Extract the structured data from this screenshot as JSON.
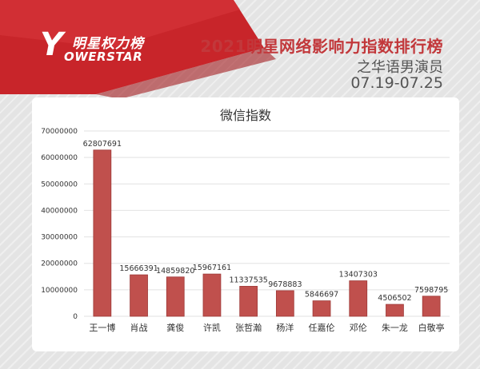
{
  "header": {
    "logo_letter": "Y",
    "logo_cn": "明星权力榜",
    "logo_en": "OWERSTAR",
    "title": "2021明星网络影响力指数排行榜",
    "subtitle": "之华语男演员",
    "date_range": "07.19-07.25"
  },
  "colors": {
    "accent": "#c2383b",
    "bar": "#c0504d",
    "bar_edge": "#9e3a38"
  },
  "chart_data": {
    "type": "bar",
    "title": "微信指数",
    "xlabel": "",
    "ylabel": "",
    "categories": [
      "王一博",
      "肖战",
      "龚俊",
      "许凯",
      "张哲瀚",
      "杨洋",
      "任嘉伦",
      "邓伦",
      "朱一龙",
      "白敬亭"
    ],
    "values": [
      62807691,
      15666391,
      14859820,
      15967161,
      11337535,
      9678883,
      5846697,
      13407303,
      4506502,
      7598795
    ],
    "ylim": [
      0,
      70000000
    ],
    "yticks": [
      0,
      10000000,
      20000000,
      30000000,
      40000000,
      50000000,
      60000000,
      70000000
    ],
    "grid": true,
    "legend": "none"
  }
}
